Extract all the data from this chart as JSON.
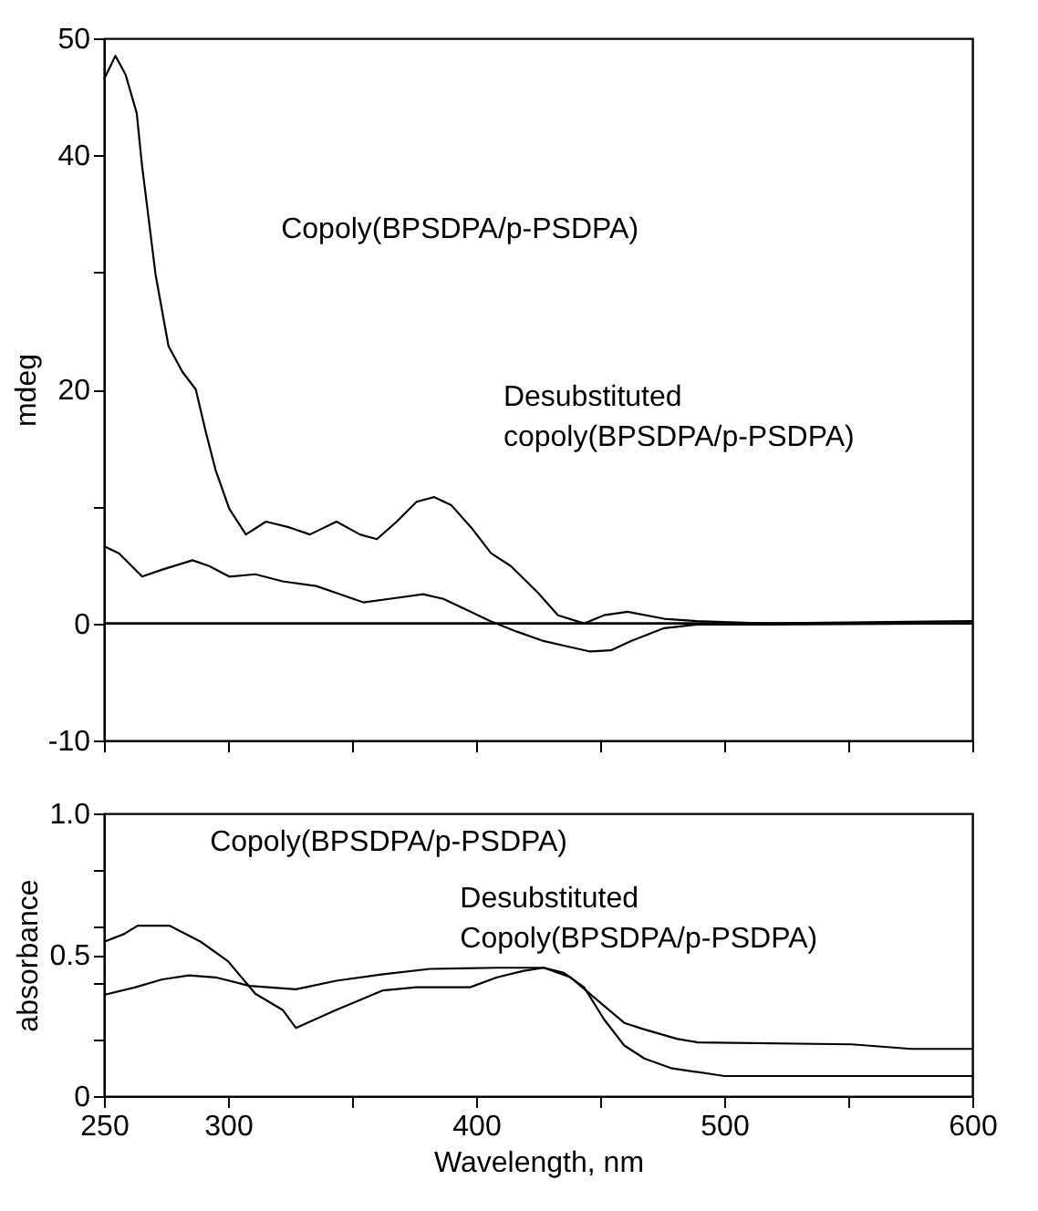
{
  "chart_data": [
    {
      "type": "line",
      "ylabel": "mdeg",
      "xlim": [
        250,
        600
      ],
      "ylim": [
        -10,
        50
      ],
      "xticks": [
        250,
        {
          "value": 300,
          "label": null
        },
        {
          "value": 350,
          "label": null
        },
        {
          "value": 400,
          "label": null
        },
        {
          "value": 450,
          "label": null
        },
        {
          "value": 500,
          "label": null
        },
        {
          "value": 550,
          "label": null
        },
        600
      ],
      "yticks": [
        -10,
        0,
        {
          "value": 10,
          "label": null
        },
        20,
        {
          "value": 30,
          "label": null
        },
        40,
        50
      ],
      "tick_labels": "y",
      "grid": false,
      "line_style": "solid",
      "ref_lines": [
        {
          "axis": "y",
          "value": 0,
          "color": "#000000"
        }
      ],
      "annotations": [
        "Copoly(BPSDPA/p-PSDPA)",
        "Desubstituted\ncopoly(BPSDPA/p-PSDPA)"
      ],
      "series": [
        {
          "color": "#000000",
          "x": [
            250,
            254.6,
            258.7,
            263.2,
            265.3,
            270.8,
            276,
            281.6,
            287,
            291,
            295,
            300.5,
            307.2,
            315.3,
            324.8,
            333,
            343.7,
            353.2,
            360,
            368,
            376,
            383,
            390,
            398,
            406,
            414,
            425,
            433,
            443.5,
            451.5,
            461,
            475.8,
            489,
            516,
            600
          ],
          "values": [
            46.5,
            48.5,
            46.9,
            43.6,
            39.2,
            29.8,
            23.7,
            21.5,
            20,
            16.4,
            13.1,
            9.8,
            7.6,
            8.7,
            8.2,
            7.6,
            8.7,
            7.6,
            7.2,
            8.7,
            10.4,
            10.8,
            10.1,
            8.2,
            6.0,
            4.9,
            2.6,
            0.7,
            0,
            0.7,
            1.0,
            0.4,
            0.2,
            0,
            0.2
          ]
        },
        {
          "color": "#000000",
          "x": [
            250,
            256,
            265.4,
            273.5,
            285.7,
            292.4,
            300.5,
            311,
            322,
            335.5,
            343.7,
            354.5,
            365,
            378.6,
            386.8,
            394.8,
            405.6,
            416.4,
            427.2,
            435.3,
            446,
            454.3,
            462.4,
            475.8,
            489,
            516,
            600
          ],
          "values": [
            6.6,
            6.0,
            4.0,
            4.6,
            5.4,
            4.9,
            4.0,
            4.2,
            3.6,
            3.2,
            2.6,
            1.8,
            2.1,
            2.5,
            2.1,
            1.3,
            0.2,
            -0.7,
            -1.5,
            -1.9,
            -2.4,
            -2.3,
            -1.5,
            -0.4,
            -0.1,
            -0.1,
            0
          ]
        }
      ]
    },
    {
      "type": "line",
      "ylabel": "absorbance",
      "xlabel": "Wavelength, nm",
      "xlim": [
        250,
        600
      ],
      "ylim": [
        0,
        1.0
      ],
      "xticks": [
        250,
        300,
        {
          "value": 350,
          "label": null
        },
        400,
        {
          "value": 450,
          "label": null
        },
        500,
        {
          "value": 550,
          "label": null
        },
        600
      ],
      "yticks": [
        0,
        {
          "value": 0.2,
          "label": null
        },
        {
          "value": 0.4,
          "label": null
        },
        0.5,
        {
          "value": 0.6,
          "label": null
        },
        {
          "value": 0.8,
          "label": null
        },
        {
          "value": 1.0,
          "label": "1.0"
        }
      ],
      "grid": false,
      "line_style": "solid",
      "annotations": [
        "Copoly(BPSDPA/p-PSDPA)",
        "Desubstituted\nCopoly(BPSDPA/p-PSDPA)"
      ],
      "series": [
        {
          "color": "#000000",
          "x": [
            250,
            258,
            263.6,
            276.4,
            289,
            300,
            311,
            322,
            327.4,
            343.6,
            362.5,
            376,
            397.6,
            408.4,
            419.2,
            427.3,
            435.4,
            443.5,
            451.6,
            459.7,
            467.8,
            478.5,
            500.1,
            600
          ],
          "values": [
            0.546,
            0.573,
            0.603,
            0.603,
            0.546,
            0.477,
            0.362,
            0.305,
            0.241,
            0.305,
            0.374,
            0.385,
            0.385,
            0.42,
            0.443,
            0.454,
            0.436,
            0.385,
            0.271,
            0.179,
            0.133,
            0.099,
            0.071,
            0.071
          ]
        },
        {
          "color": "#000000",
          "x": [
            250,
            262.7,
            273.5,
            284.3,
            295,
            308.6,
            327.4,
            343.6,
            362.5,
            381.4,
            408.4,
            427.3,
            438.1,
            448.9,
            459.7,
            467.8,
            481.2,
            489.3,
            551.4,
            575.6,
            600
          ],
          "values": [
            0.358,
            0.385,
            0.413,
            0.427,
            0.42,
            0.39,
            0.378,
            0.408,
            0.431,
            0.45,
            0.454,
            0.454,
            0.42,
            0.339,
            0.259,
            0.236,
            0.202,
            0.19,
            0.183,
            0.167,
            0.167
          ]
        }
      ]
    }
  ]
}
